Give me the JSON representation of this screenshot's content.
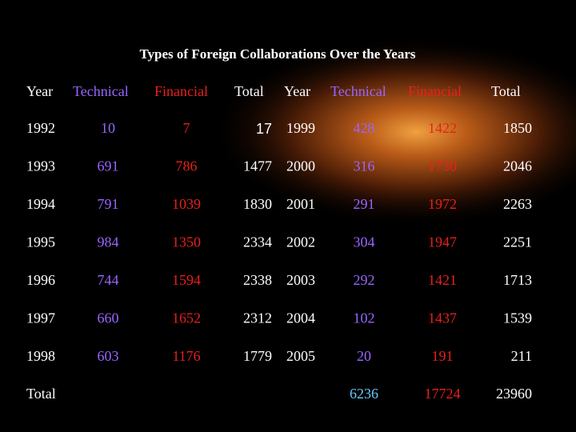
{
  "title": "Types of Foreign Collaborations Over the Years",
  "table": {
    "header": [
      "Year",
      "Technical",
      "Financial",
      "Total",
      "Year",
      "Technical",
      "Financial",
      "Total"
    ],
    "rows": [
      [
        1992,
        10,
        7,
        17,
        1999,
        428,
        1422,
        1850
      ],
      [
        1993,
        691,
        786,
        1477,
        2000,
        316,
        1730,
        2046
      ],
      [
        1994,
        791,
        1039,
        1830,
        2001,
        291,
        1972,
        2263
      ],
      [
        1995,
        984,
        1350,
        2334,
        2002,
        304,
        1947,
        2251
      ],
      [
        1996,
        744,
        1594,
        2338,
        2003,
        292,
        1421,
        1713
      ],
      [
        1997,
        660,
        1652,
        2312,
        2004,
        102,
        1437,
        1539
      ],
      [
        1998,
        603,
        1176,
        1779,
        2005,
        20,
        191,
        211
      ]
    ],
    "total": {
      "label": "Total",
      "technical": 6236,
      "financial": 17724,
      "total": 23960
    }
  }
}
